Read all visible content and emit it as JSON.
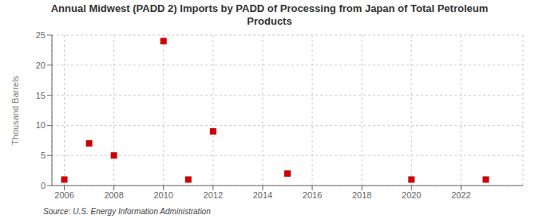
{
  "chart_data": {
    "type": "scatter",
    "title": "Annual Midwest (PADD 2) Imports by PADD of Processing from Japan of Total Petroleum\nProducts",
    "y_label": "Thousand Barrels",
    "annotations": [
      "Source: U.S. Energy Information Administration"
    ],
    "x": [
      2006,
      2007,
      2008,
      2010,
      2011,
      2012,
      2015,
      2020,
      2023
    ],
    "values": [
      1,
      7,
      5,
      24,
      1,
      9,
      2,
      1,
      1
    ],
    "color": "#cc0000",
    "marker": "square",
    "xlim": [
      2005.5,
      2024.5
    ],
    "ylim": [
      0,
      25
    ],
    "xticks": [
      2006,
      2008,
      2010,
      2012,
      2014,
      2016,
      2018,
      2020,
      2022
    ],
    "yticks": [
      0,
      5,
      10,
      15,
      20,
      25
    ],
    "grid": true
  }
}
